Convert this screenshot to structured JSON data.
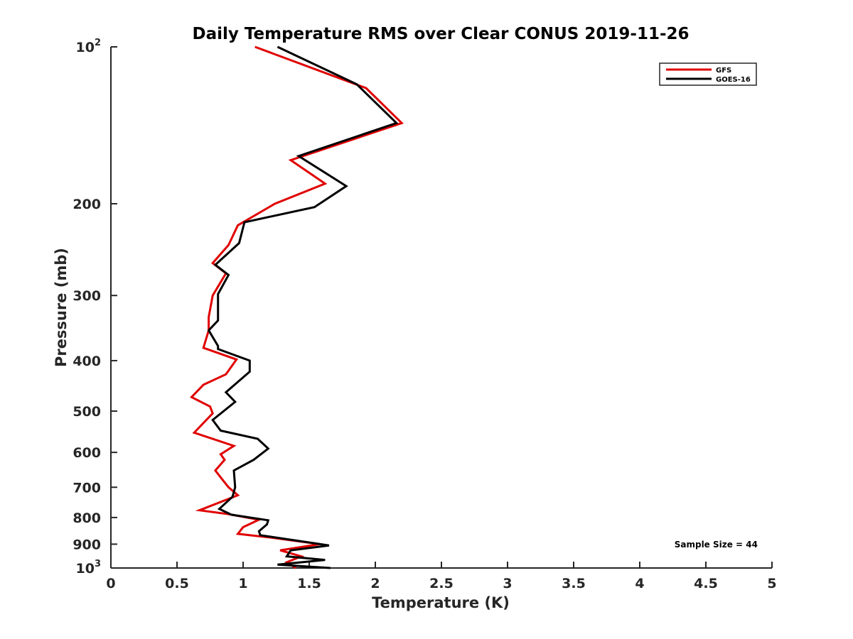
{
  "chart_data": {
    "type": "line",
    "title": "Daily Temperature RMS over Clear CONUS 2019-11-26",
    "xlabel": "Temperature (K)",
    "ylabel": "Pressure (mb)",
    "xlim": [
      0,
      5
    ],
    "ylim": [
      100,
      1000
    ],
    "y_scale": "log",
    "y_reversed": true,
    "x_ticks": [
      "0",
      "0.5",
      "1",
      "1.5",
      "2",
      "2.5",
      "3",
      "3.5",
      "4",
      "4.5",
      "5"
    ],
    "y_ticks": [
      {
        "value": 100,
        "base": "10",
        "exp": "2"
      },
      {
        "value": 200,
        "label": "200"
      },
      {
        "value": 300,
        "label": "300"
      },
      {
        "value": 400,
        "label": "400"
      },
      {
        "value": 500,
        "label": "500"
      },
      {
        "value": 600,
        "label": "600"
      },
      {
        "value": 700,
        "label": "700"
      },
      {
        "value": 800,
        "label": "800"
      },
      {
        "value": 900,
        "label": "900"
      },
      {
        "value": 1000,
        "base": "10",
        "exp": "3"
      }
    ],
    "legend_position": "top-right",
    "grid": false,
    "annotation": "Sample Size = 44",
    "series": [
      {
        "name": "GFS",
        "color": "#e00000",
        "points": [
          [
            1.09,
            100
          ],
          [
            1.93,
            120
          ],
          [
            2.2,
            140
          ],
          [
            1.36,
            165
          ],
          [
            1.62,
            183
          ],
          [
            1.24,
            200
          ],
          [
            0.96,
            220
          ],
          [
            0.89,
            240
          ],
          [
            0.77,
            260
          ],
          [
            0.87,
            272
          ],
          [
            0.77,
            300
          ],
          [
            0.74,
            330
          ],
          [
            0.74,
            350
          ],
          [
            0.7,
            378
          ],
          [
            0.95,
            398
          ],
          [
            0.87,
            425
          ],
          [
            0.7,
            445
          ],
          [
            0.61,
            470
          ],
          [
            0.75,
            490
          ],
          [
            0.77,
            505
          ],
          [
            0.63,
            550
          ],
          [
            0.93,
            583
          ],
          [
            0.83,
            605
          ],
          [
            0.86,
            620
          ],
          [
            0.79,
            650
          ],
          [
            0.83,
            670
          ],
          [
            0.89,
            700
          ],
          [
            0.96,
            725
          ],
          [
            0.67,
            775
          ],
          [
            0.89,
            788
          ],
          [
            1.12,
            808
          ],
          [
            1.0,
            835
          ],
          [
            0.96,
            860
          ],
          [
            1.22,
            875
          ],
          [
            1.58,
            900
          ],
          [
            1.28,
            925
          ],
          [
            1.44,
            950
          ],
          [
            1.33,
            975
          ],
          [
            1.4,
            1000
          ]
        ]
      },
      {
        "name": "GOES-16",
        "color": "#000000",
        "points": [
          [
            1.26,
            100
          ],
          [
            1.86,
            118
          ],
          [
            2.16,
            140
          ],
          [
            1.42,
            162
          ],
          [
            1.78,
            185
          ],
          [
            1.54,
            203
          ],
          [
            1.01,
            217
          ],
          [
            0.97,
            238
          ],
          [
            0.79,
            262
          ],
          [
            0.89,
            274
          ],
          [
            0.81,
            298
          ],
          [
            0.81,
            335
          ],
          [
            0.74,
            350
          ],
          [
            0.81,
            375
          ],
          [
            0.81,
            380
          ],
          [
            1.05,
            400
          ],
          [
            1.05,
            420
          ],
          [
            0.87,
            460
          ],
          [
            0.94,
            480
          ],
          [
            0.77,
            520
          ],
          [
            0.83,
            545
          ],
          [
            1.11,
            565
          ],
          [
            1.19,
            590
          ],
          [
            1.08,
            620
          ],
          [
            0.93,
            650
          ],
          [
            0.94,
            700
          ],
          [
            0.92,
            730
          ],
          [
            0.82,
            770
          ],
          [
            0.91,
            790
          ],
          [
            1.19,
            810
          ],
          [
            1.18,
            825
          ],
          [
            1.12,
            850
          ],
          [
            1.13,
            865
          ],
          [
            1.65,
            905
          ],
          [
            1.36,
            925
          ],
          [
            1.33,
            950
          ],
          [
            1.62,
            965
          ],
          [
            1.26,
            985
          ],
          [
            1.66,
            1000
          ]
        ]
      }
    ]
  }
}
